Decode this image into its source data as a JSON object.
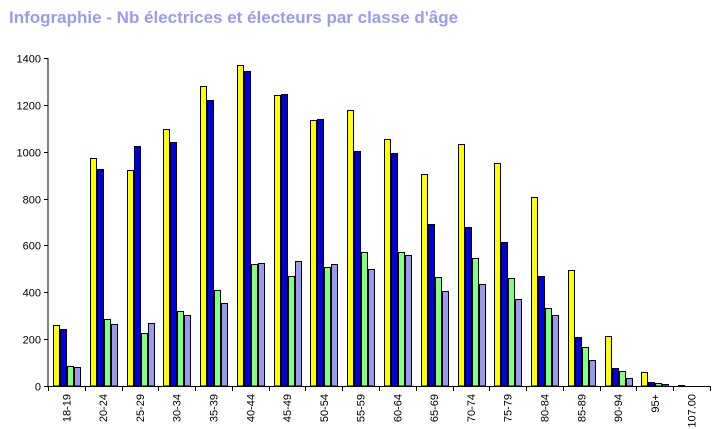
{
  "chart_data": {
    "type": "bar",
    "title": "Infographie - Nb électrices et électeurs par classe d'âge",
    "xlabel": "",
    "ylabel": "",
    "ylim": [
      0,
      1400
    ],
    "yticks": [
      0,
      200,
      400,
      600,
      800,
      1000,
      1200,
      1400
    ],
    "grid": false,
    "legend": "none",
    "categories": [
      "18-19",
      "20-24",
      "25-29",
      "30-34",
      "35-39",
      "40-44",
      "45-49",
      "50-54",
      "55-59",
      "60-64",
      "65-69",
      "70-74",
      "75-79",
      "80-84",
      "85-89",
      "90-94",
      "95+",
      "107.00"
    ],
    "series": [
      {
        "color": "#ffff00",
        "values": [
          260,
          975,
          920,
          1095,
          1280,
          1370,
          1240,
          1135,
          1180,
          1055,
          905,
          1035,
          950,
          805,
          495,
          215,
          60,
          3
        ]
      },
      {
        "color": "#0000dd",
        "values": [
          245,
          925,
          1025,
          1040,
          1220,
          1345,
          1245,
          1140,
          1005,
          995,
          690,
          680,
          615,
          470,
          210,
          75,
          15,
          2
        ]
      },
      {
        "color": "#80ff80",
        "values": [
          85,
          285,
          225,
          320,
          410,
          520,
          470,
          510,
          570,
          570,
          465,
          545,
          460,
          335,
          165,
          65,
          12,
          0
        ]
      },
      {
        "color": "#9999ee",
        "values": [
          80,
          265,
          270,
          305,
          355,
          525,
          535,
          520,
          500,
          560,
          405,
          435,
          370,
          305,
          110,
          35,
          8,
          0
        ]
      }
    ]
  }
}
